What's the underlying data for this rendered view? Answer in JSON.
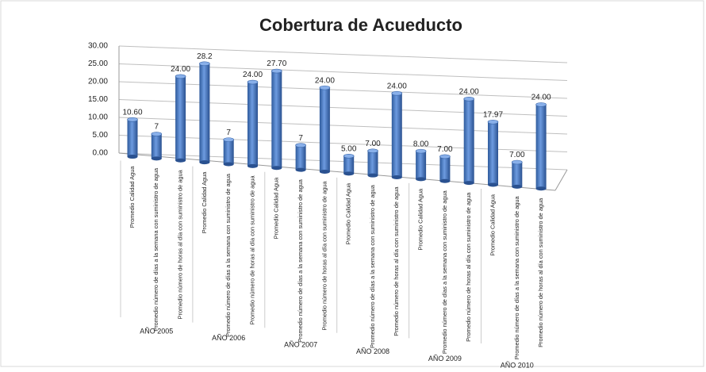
{
  "chart_data": {
    "type": "bar3d",
    "title": "Cobertura de Acueducto",
    "categories": [
      "Promedio Calidad Agua",
      "Promedio número de días a la semana con suministro de agua",
      "Promedio número de horas al día con suministro de agua",
      "Promedio Calidad Agua",
      "Promedio número de días a la semana con suministro de agua",
      "Promedio número de horas al día con suministro de agua",
      "Promedio Calidad Agua",
      "Promedio número de días a la semana con suministro de agua",
      "Promedio número de horas al día con suministro de agua",
      "Promedio Calidad Agua",
      "Promedio número de días a la semana con suministro de agua",
      "Promedio número de horas al día con suministro de agua",
      "Promedio Calidad Agua",
      "Promedio número de días a la semana con suministro de agua",
      "Promedio número de horas al día con suministro de agua",
      "Promedio Calidad Agua",
      "Promedio número de días a la semana con suministro de agua",
      "Promedio número de horas al día con suministro de agua"
    ],
    "groups": [
      "AÑO 2005",
      "AÑO 2006",
      "AÑO 2007",
      "AÑO 2008",
      "AÑO 2009",
      "AÑO 2010"
    ],
    "values": [
      10.6,
      7,
      24,
      28.2,
      7,
      24,
      27.7,
      7,
      24,
      5,
      7,
      24,
      8,
      7,
      24,
      17.97,
      7,
      24
    ],
    "value_labels": [
      "10.60",
      "7",
      "24.00",
      "28.2",
      "7",
      "24.00",
      "27.70",
      "7",
      "24.00",
      "5.00",
      "7.00",
      "24.00",
      "8.00",
      "7.00",
      "24.00",
      "17.97",
      "7.00",
      "24.00"
    ],
    "color": "#4f7fc4",
    "ylim": [
      0,
      30
    ],
    "yticks": [
      {
        "value": 0,
        "label": "0.00"
      },
      {
        "value": 5,
        "label": "5.00"
      },
      {
        "value": 10,
        "label": "10.00"
      },
      {
        "value": 15,
        "label": "15.00"
      },
      {
        "value": 20,
        "label": "20.00"
      },
      {
        "value": 25,
        "label": "25.00"
      },
      {
        "value": 30,
        "label": "30.00"
      }
    ],
    "grid": true
  }
}
